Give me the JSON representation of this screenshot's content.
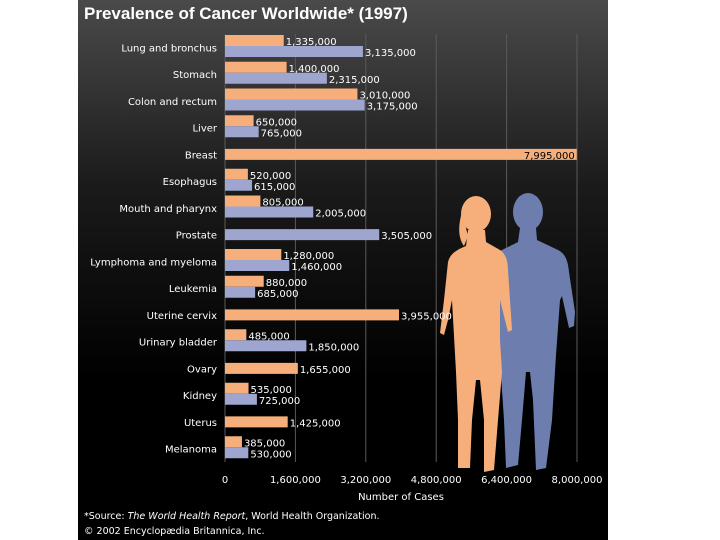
{
  "chart_data": {
    "type": "bar",
    "orientation": "horizontal",
    "title": "Prevalence of Cancer Worldwide* (1997)",
    "xlabel": "Number of Cases",
    "xlim": [
      0,
      8000000
    ],
    "xticks": [
      0,
      1600000,
      3200000,
      4800000,
      6400000,
      8000000
    ],
    "xtick_labels": [
      "0",
      "1,600,000",
      "3,200,000",
      "4,800,000",
      "6,400,000",
      "8,000,000"
    ],
    "grid": true,
    "colors": {
      "female": "#f6ae7a",
      "male": "#9ea6cf"
    },
    "categories": [
      {
        "label": "Lung and bronchus",
        "female": 1335000,
        "female_label": "1,335,000",
        "male": 3135000,
        "male_label": "3,135,000"
      },
      {
        "label": "Stomach",
        "female": 1400000,
        "female_label": "1,400,000",
        "male": 2315000,
        "male_label": "2,315,000"
      },
      {
        "label": "Colon and rectum",
        "female": 3010000,
        "female_label": "3,010,000",
        "male": 3175000,
        "male_label": "3,175,000"
      },
      {
        "label": "Liver",
        "female": 650000,
        "female_label": "650,000",
        "male": 765000,
        "male_label": "765,000"
      },
      {
        "label": "Breast",
        "female": 7995000,
        "female_label": "7,995,000"
      },
      {
        "label": "Esophagus",
        "female": 520000,
        "female_label": "520,000",
        "male": 615000,
        "male_label": "615,000"
      },
      {
        "label": "Mouth and pharynx",
        "female": 805000,
        "female_label": "805,000",
        "male": 2005000,
        "male_label": "2,005,000"
      },
      {
        "label": "Prostate",
        "male": 3505000,
        "male_label": "3,505,000"
      },
      {
        "label": "Lymphoma and myeloma",
        "female": 1280000,
        "female_label": "1,280,000",
        "male": 1460000,
        "male_label": "1,460,000"
      },
      {
        "label": "Leukemia",
        "female": 880000,
        "female_label": "880,000",
        "male": 685000,
        "male_label": "685,000"
      },
      {
        "label": "Uterine cervix",
        "female": 3955000,
        "female_label": "3,955,000"
      },
      {
        "label": "Urinary bladder",
        "female": 485000,
        "female_label": "485,000",
        "male": 1850000,
        "male_label": "1,850,000"
      },
      {
        "label": "Ovary",
        "female": 1655000,
        "female_label": "1,655,000"
      },
      {
        "label": "Kidney",
        "female": 535000,
        "female_label": "535,000",
        "male": 725000,
        "male_label": "725,000"
      },
      {
        "label": "Uterus",
        "female": 1425000,
        "female_label": "1,425,000"
      },
      {
        "label": "Melanoma",
        "female": 385000,
        "female_label": "385,000",
        "male": 530000,
        "male_label": "530,000"
      }
    ]
  },
  "footer": {
    "source_prefix": "*Source: ",
    "source_title": "The World Health Report",
    "source_suffix": ", World Health Organization.",
    "copyright": "© 2002 Encyclopædia Britannica, Inc."
  },
  "illustration": {
    "figures": [
      "female-silhouette",
      "male-silhouette"
    ]
  }
}
